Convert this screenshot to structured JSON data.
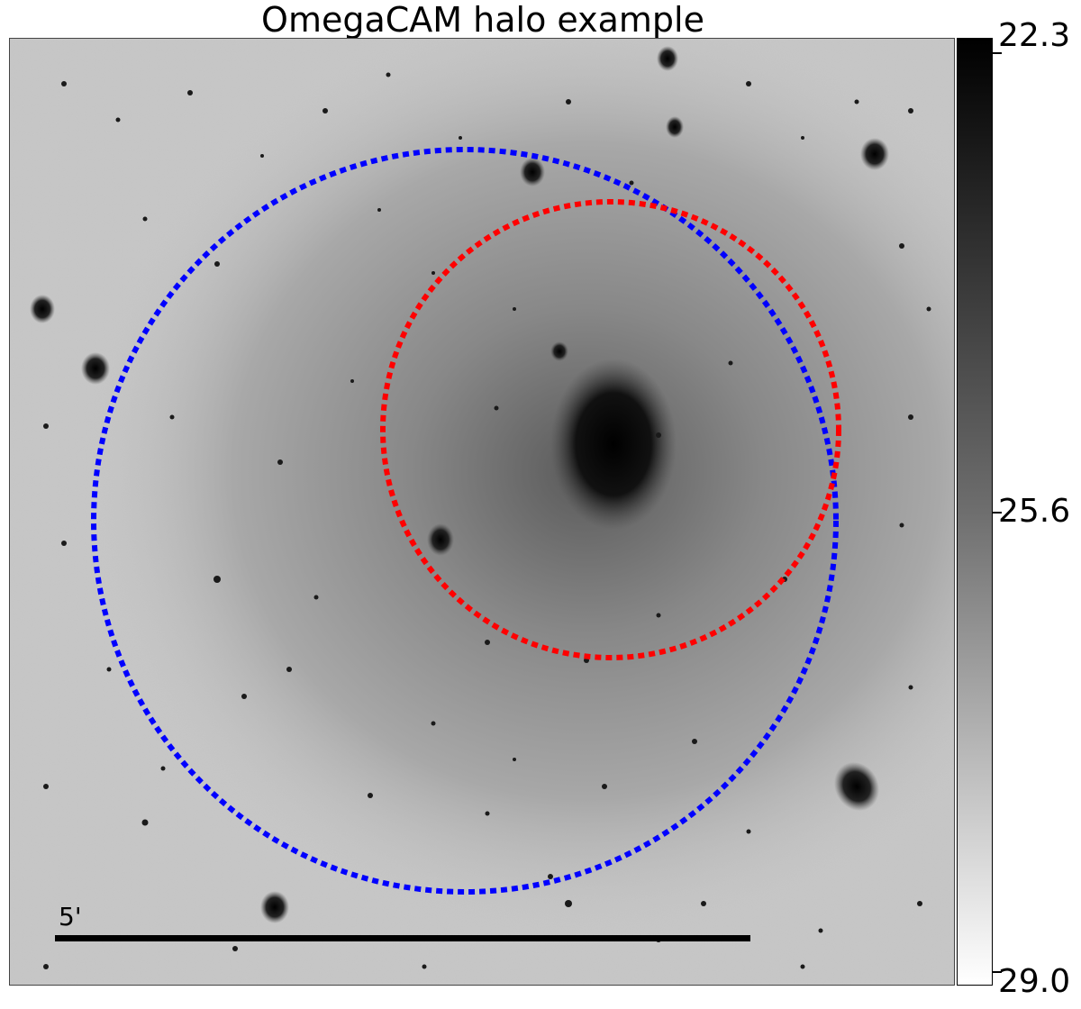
{
  "figure": {
    "title": "OmegaCAM halo example",
    "scale_bar": {
      "label": "5'"
    },
    "colorbar": {
      "ticks": [
        "22.3",
        "25.6",
        "29.0"
      ],
      "colors": {
        "top": "#000000",
        "bottom": "#ffffff"
      }
    },
    "circles": [
      {
        "name": "blue-dotted-circle",
        "color": "#0000ff",
        "style": "dotted"
      },
      {
        "name": "red-dotted-circle",
        "color": "#ff0000",
        "style": "dotted"
      }
    ]
  }
}
